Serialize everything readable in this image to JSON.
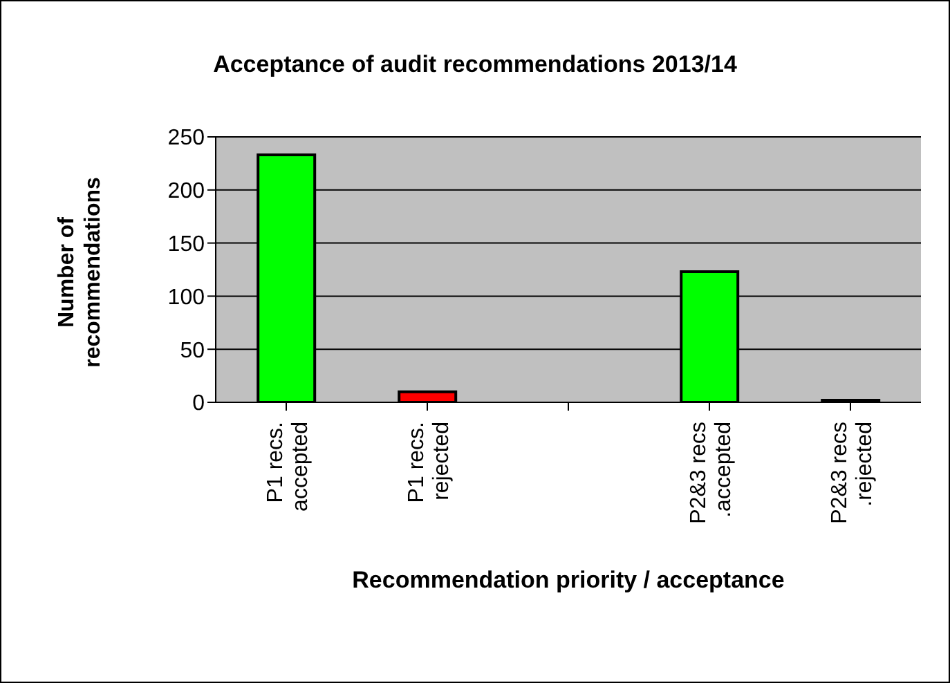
{
  "chart_data": {
    "type": "bar",
    "title": "Acceptance of audit recommendations 2013/14",
    "xlabel": "Recommendation priority / acceptance",
    "ylabel": "Number of recommendations",
    "categories": [
      "P1 recs. accepted",
      "P1 recs. rejected",
      null,
      "P2&3 recs .accepted",
      "P2&3 recs .rejected"
    ],
    "values": [
      233,
      10,
      null,
      123,
      2
    ],
    "colors": [
      "#00ff00",
      "#ff0000",
      "#000000",
      "#00ff00",
      "#000000"
    ],
    "ylim": [
      0,
      250
    ],
    "yticks": [
      0,
      50,
      100,
      150,
      200,
      250
    ],
    "grid": "y"
  }
}
